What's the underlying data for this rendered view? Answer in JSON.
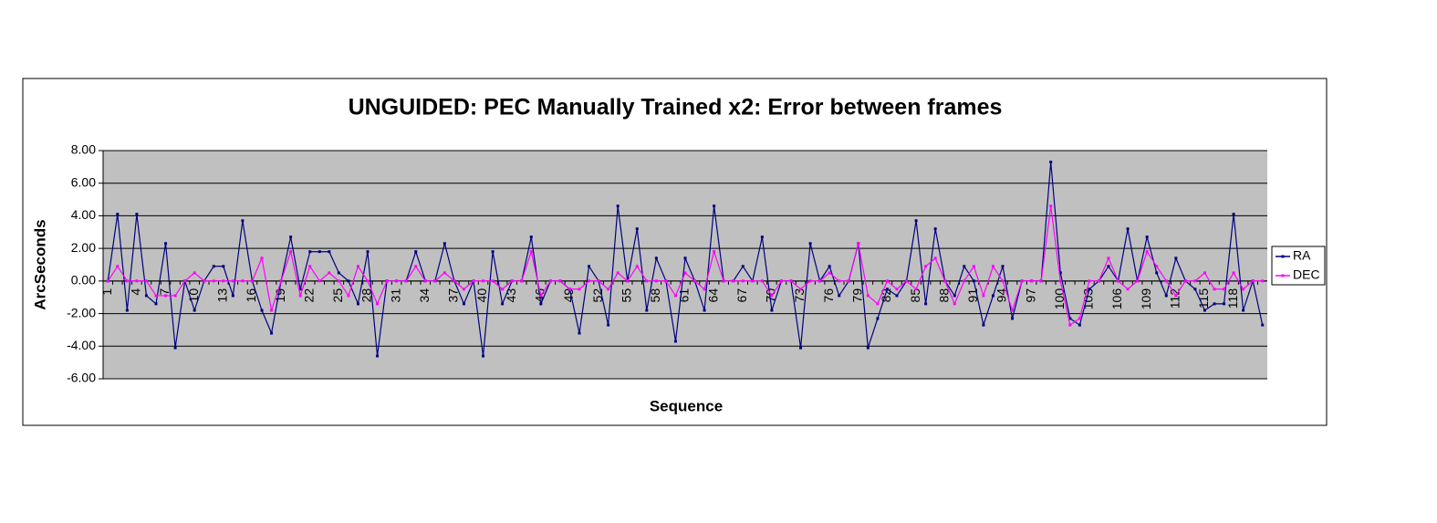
{
  "chart_data": {
    "type": "line",
    "title": "UNGUIDED: PEC Manually Trained x2: Error between frames",
    "x_label": "Sequence",
    "y_label": "ArcSeconds",
    "categories": [
      "1",
      null,
      null,
      "4",
      null,
      null,
      "7",
      null,
      null,
      "10",
      null,
      null,
      "13",
      null,
      null,
      "16",
      null,
      null,
      "19",
      null,
      null,
      "22",
      null,
      null,
      "25",
      null,
      null,
      "28",
      null,
      null,
      "31",
      null,
      null,
      "34",
      null,
      null,
      "37",
      null,
      null,
      "40",
      null,
      null,
      "43",
      null,
      null,
      "46",
      null,
      null,
      "49",
      null,
      null,
      "52",
      null,
      null,
      "55",
      null,
      null,
      "58",
      null,
      null,
      "61",
      null,
      null,
      "64",
      null,
      null,
      "67",
      null,
      null,
      "70",
      null,
      null,
      "73",
      null,
      null,
      "76",
      null,
      null,
      "79",
      null,
      null,
      "82",
      null,
      null,
      "85",
      null,
      null,
      "88",
      null,
      null,
      "91",
      null,
      null,
      "94",
      null,
      null,
      "97",
      null,
      null,
      "100",
      null,
      null,
      "103",
      null,
      null,
      "106",
      null,
      null,
      "109",
      null,
      null,
      "112",
      null,
      null,
      "115",
      null,
      null,
      "118",
      null,
      null,
      null
    ],
    "series": [
      {
        "name": "RA",
        "color": "#000080",
        "values": [
          0,
          4.1,
          -1.8,
          4.1,
          -0.9,
          -1.4,
          2.3,
          -4.1,
          0,
          -1.8,
          0,
          0.9,
          0.9,
          -0.9,
          3.7,
          0,
          -1.8,
          -3.2,
          0,
          2.7,
          -0.5,
          1.8,
          1.8,
          1.8,
          0.5,
          0,
          -1.4,
          1.8,
          -4.6,
          0,
          0,
          0,
          1.8,
          0,
          0,
          2.3,
          0,
          -1.4,
          0,
          -4.6,
          1.8,
          -1.4,
          0,
          0,
          2.7,
          -1.4,
          0,
          0,
          -0.5,
          -3.2,
          0.9,
          0,
          -2.7,
          4.6,
          0,
          3.2,
          -1.8,
          1.4,
          0,
          -3.7,
          1.4,
          0,
          -1.8,
          4.6,
          0,
          0,
          0.9,
          0,
          2.7,
          -1.8,
          0,
          0,
          -4.1,
          2.3,
          0,
          0.9,
          -0.9,
          0,
          2.3,
          -4.1,
          -2.3,
          -0.5,
          -0.9,
          0,
          3.7,
          -1.4,
          3.2,
          0,
          -0.9,
          0.9,
          0,
          -2.7,
          -0.9,
          0.9,
          -2.3,
          0,
          0,
          0,
          7.3,
          0.5,
          -2.3,
          -2.7,
          -0.5,
          0,
          0.9,
          0,
          3.2,
          0,
          2.7,
          0.5,
          -0.9,
          1.4,
          0,
          -0.5,
          -1.8,
          -1.4,
          -1.4,
          4.1,
          -1.8,
          0,
          -2.7
        ]
      },
      {
        "name": "DEC",
        "color": "#ff00ff",
        "values": [
          0,
          0.9,
          0,
          0,
          0,
          -0.9,
          -0.9,
          -0.9,
          0,
          0.5,
          0,
          0,
          0,
          0,
          0,
          0,
          1.4,
          -1.8,
          0,
          1.8,
          -0.9,
          0.9,
          0,
          0.5,
          0,
          -0.9,
          0.9,
          0,
          -1.4,
          0,
          0,
          0,
          0.9,
          0,
          0,
          0.5,
          0,
          -0.5,
          0,
          0,
          0,
          -0.5,
          0,
          0,
          1.8,
          -0.9,
          0,
          0,
          -0.5,
          -0.5,
          0,
          0,
          -0.5,
          0.5,
          0,
          0.9,
          0,
          0,
          0,
          -0.9,
          0.5,
          0,
          -0.5,
          1.8,
          0,
          0,
          0,
          0,
          0,
          -0.9,
          0,
          0,
          -0.5,
          0,
          0,
          0.5,
          0,
          0,
          2.3,
          -0.9,
          -1.4,
          0,
          -0.5,
          0,
          -0.5,
          0.9,
          1.4,
          0,
          -1.4,
          0,
          0.9,
          -0.9,
          0.9,
          0,
          -1.8,
          0,
          0,
          0,
          4.6,
          0,
          -2.7,
          -2.3,
          0,
          0,
          1.4,
          0,
          -0.5,
          0,
          1.8,
          0.9,
          0,
          -0.9,
          0,
          0,
          0.5,
          -0.5,
          -0.5,
          0.5,
          -0.5,
          0,
          0
        ]
      }
    ],
    "ylim": [
      -6,
      8
    ],
    "yticks": [
      {
        "value": -6,
        "label": "-6.00"
      },
      {
        "value": -4,
        "label": "-4.00"
      },
      {
        "value": -2,
        "label": "-2.00"
      },
      {
        "value": 0,
        "label": "0.00"
      },
      {
        "value": 2,
        "label": "2.00"
      },
      {
        "value": 4,
        "label": "4.00"
      },
      {
        "value": 6,
        "label": "6.00"
      },
      {
        "value": 8,
        "label": "8.00"
      }
    ],
    "grid": true,
    "legend": "right"
  }
}
